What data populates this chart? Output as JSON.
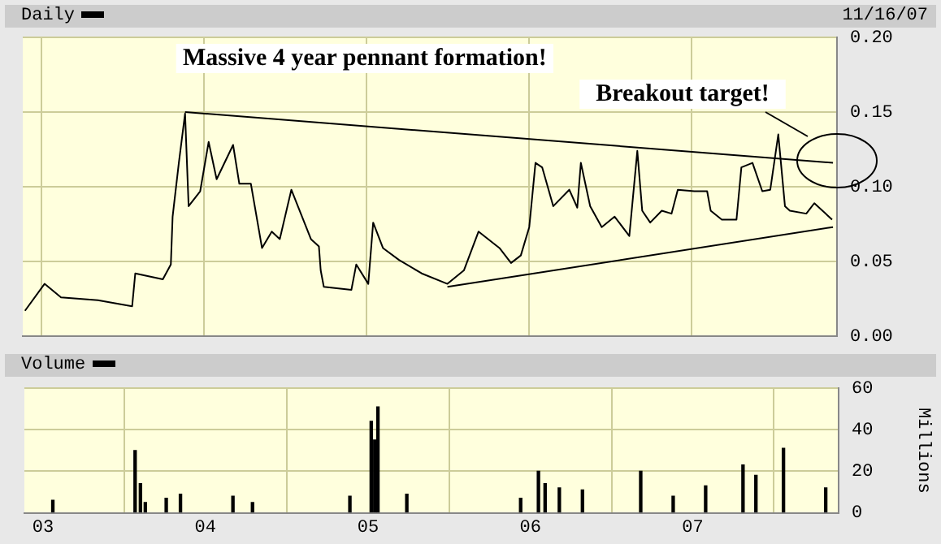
{
  "chart_data": [
    {
      "type": "line",
      "title": "Daily",
      "annotations": [
        "Massive 4 year pennant formation!",
        "Breakout target!",
        "11/16/07"
      ],
      "xlim": [
        "2002-11-20",
        "2007-11-25"
      ],
      "xticks": [
        {
          "value": "2003-01-01",
          "label": null
        },
        {
          "value": "2004-01-01",
          "label": null
        },
        {
          "value": "2005-01-01",
          "label": null
        },
        {
          "value": "2006-01-01",
          "label": null
        },
        {
          "value": "2007-01-01",
          "label": null
        }
      ],
      "ylim": [
        0,
        0.2
      ],
      "yticks": [
        {
          "value": 0,
          "label": "0.00"
        },
        {
          "value": 0.05,
          "label": "0.05"
        },
        {
          "value": 0.1,
          "label": "0.10"
        },
        {
          "value": 0.15,
          "label": "0.15"
        },
        {
          "value": 0.2,
          "label": "0.20"
        }
      ],
      "grid": true,
      "legend": false,
      "tick_labels": "y",
      "marker": "none",
      "series": [
        {
          "color": "#000000",
          "x": [
            "2002-11-25",
            "2003-01-08",
            "2003-02-14",
            "2003-05-08",
            "2003-07-24",
            "2003-07-31",
            "2003-10-01",
            "2003-10-19",
            "2003-10-23",
            "2003-11-06",
            "2003-11-20",
            "2003-11-28",
            "2003-12-24",
            "2004-01-12",
            "2004-01-30",
            "2004-03-07",
            "2004-03-21",
            "2004-04-16",
            "2004-05-11",
            "2004-06-02",
            "2004-06-20",
            "2004-07-16",
            "2004-08-29",
            "2004-09-16",
            "2004-09-20",
            "2004-09-27",
            "2004-11-28",
            "2004-12-09",
            "2005-01-05",
            "2005-01-16",
            "2005-02-07",
            "2005-03-15",
            "2005-05-05",
            "2005-07-02",
            "2005-08-08",
            "2005-09-10",
            "2005-10-27",
            "2005-11-22",
            "2005-12-14",
            "2006-01-02",
            "2006-01-16",
            "2006-01-31",
            "2006-02-25",
            "2006-04-02",
            "2006-04-20",
            "2006-04-28",
            "2006-05-19",
            "2006-06-14",
            "2006-07-13",
            "2006-08-15",
            "2006-09-02",
            "2006-09-13",
            "2006-10-01",
            "2006-10-27",
            "2006-11-18",
            "2006-12-02",
            "2007-01-08",
            "2007-02-06",
            "2007-02-14",
            "2007-03-11",
            "2007-04-13",
            "2007-04-24",
            "2007-05-19",
            "2007-06-10",
            "2007-06-28",
            "2007-07-16",
            "2007-07-31",
            "2007-08-11",
            "2007-09-17",
            "2007-10-05",
            "2007-11-14"
          ],
          "values": [
            0.017,
            0.035,
            0.026,
            0.024,
            0.02,
            0.042,
            0.038,
            0.048,
            0.08,
            0.116,
            0.149,
            0.087,
            0.097,
            0.13,
            0.105,
            0.128,
            0.102,
            0.102,
            0.059,
            0.07,
            0.065,
            0.098,
            0.065,
            0.06,
            0.044,
            0.033,
            0.031,
            0.048,
            0.035,
            0.076,
            0.059,
            0.051,
            0.042,
            0.035,
            0.044,
            0.07,
            0.059,
            0.049,
            0.054,
            0.073,
            0.116,
            0.113,
            0.087,
            0.098,
            0.086,
            0.116,
            0.087,
            0.073,
            0.08,
            0.067,
            0.124,
            0.084,
            0.076,
            0.084,
            0.082,
            0.098,
            0.097,
            0.097,
            0.084,
            0.078,
            0.078,
            0.113,
            0.116,
            0.097,
            0.098,
            0.135,
            0.087,
            0.084,
            0.082,
            0.089,
            0.078
          ]
        },
        {
          "type": "line",
          "color": "#000000",
          "x": [
            "2003-11-20",
            "2007-11-16"
          ],
          "values": [
            0.15,
            0.116
          ]
        },
        {
          "type": "line",
          "color": "#000000",
          "x": [
            "2005-07-02",
            "2007-11-16"
          ],
          "values": [
            0.033,
            0.073
          ]
        }
      ]
    },
    {
      "type": "bar",
      "title": "Volume",
      "ylabel": "Millions",
      "color": "#000000",
      "xlim": [
        "2002-11-20",
        "2007-11-25"
      ],
      "xticks": [
        {
          "value": "2003-01-01",
          "label": "03"
        },
        {
          "value": "2004-01-01",
          "label": "04"
        },
        {
          "value": "2005-01-01",
          "label": "05"
        },
        {
          "value": "2006-01-01",
          "label": "06"
        },
        {
          "value": "2007-01-01",
          "label": "07"
        }
      ],
      "ylim": [
        0,
        60
      ],
      "yticks": [
        0,
        20,
        40,
        60
      ],
      "grid": true,
      "legend": false,
      "x": [
        "2003-01-23",
        "2003-07-27",
        "2003-08-08",
        "2003-08-19",
        "2003-10-05",
        "2003-11-06",
        "2004-03-03",
        "2004-04-16",
        "2004-11-21",
        "2005-01-08",
        "2005-01-16",
        "2005-01-23",
        "2005-03-29",
        "2005-12-10",
        "2006-01-19",
        "2006-02-03",
        "2006-03-07",
        "2006-04-28",
        "2006-09-06",
        "2006-11-18",
        "2007-01-30",
        "2007-04-24",
        "2007-05-23",
        "2007-07-24",
        "2007-10-27"
      ],
      "values": [
        6,
        30,
        14,
        5,
        7,
        9,
        8,
        5,
        8,
        44,
        35,
        51,
        9,
        7,
        20,
        14,
        12,
        11,
        20,
        8,
        13,
        23,
        18,
        31,
        12
      ]
    }
  ]
}
